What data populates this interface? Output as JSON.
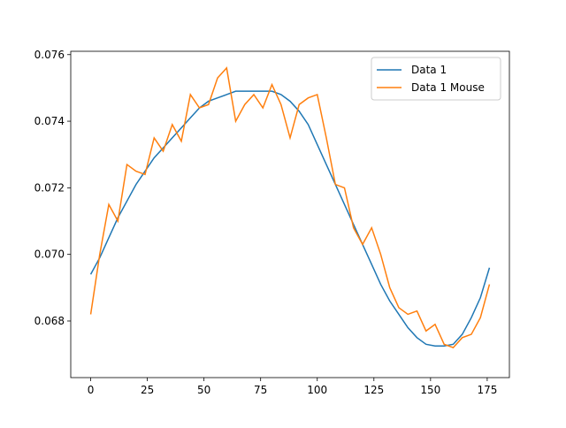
{
  "chart_data": {
    "type": "line",
    "x": [
      0,
      4,
      8,
      12,
      16,
      20,
      24,
      28,
      32,
      36,
      40,
      44,
      48,
      52,
      56,
      60,
      64,
      68,
      72,
      76,
      80,
      84,
      88,
      92,
      96,
      100,
      104,
      108,
      112,
      116,
      120,
      124,
      128,
      132,
      136,
      140,
      144,
      148,
      152,
      156,
      160,
      164,
      168,
      172,
      176
    ],
    "series": [
      {
        "name": "Data 1",
        "color": "#1f77b4",
        "values": [
          0.0694,
          0.0699,
          0.0705,
          0.0711,
          0.0716,
          0.0721,
          0.0725,
          0.0729,
          0.0732,
          0.0735,
          0.0738,
          0.0741,
          0.0744,
          0.0746,
          0.0747,
          0.0748,
          0.0749,
          0.0749,
          0.0749,
          0.0749,
          0.0749,
          0.0748,
          0.0746,
          0.0743,
          0.0739,
          0.0733,
          0.0727,
          0.0721,
          0.0715,
          0.0709,
          0.0703,
          0.0697,
          0.0691,
          0.0686,
          0.0682,
          0.0678,
          0.0675,
          0.0673,
          0.06725,
          0.06725,
          0.0673,
          0.0676,
          0.0681,
          0.0687,
          0.0696
        ]
      },
      {
        "name": "Data 1 Mouse",
        "color": "#ff7f0e",
        "values": [
          0.0682,
          0.07,
          0.0715,
          0.071,
          0.0727,
          0.0725,
          0.0724,
          0.0735,
          0.0731,
          0.0739,
          0.0734,
          0.0748,
          0.0744,
          0.0745,
          0.0753,
          0.0756,
          0.074,
          0.0745,
          0.0748,
          0.0744,
          0.0751,
          0.0745,
          0.0735,
          0.0745,
          0.0747,
          0.0748,
          0.0735,
          0.0721,
          0.072,
          0.0708,
          0.0703,
          0.0708,
          0.07,
          0.069,
          0.0684,
          0.0682,
          0.0683,
          0.0677,
          0.0679,
          0.0673,
          0.0672,
          0.0675,
          0.0676,
          0.0681,
          0.0691
        ]
      }
    ],
    "xlim": [
      -8.8,
      184.8
    ],
    "xticks": [
      0,
      25,
      50,
      75,
      100,
      125,
      150,
      175
    ],
    "ylim": [
      0.0663,
      0.0761
    ],
    "yticks": [
      0.068,
      {
        "value": 0.07,
        "label": "0.070"
      },
      0.072,
      0.074,
      0.076
    ],
    "legend": "upper right"
  }
}
